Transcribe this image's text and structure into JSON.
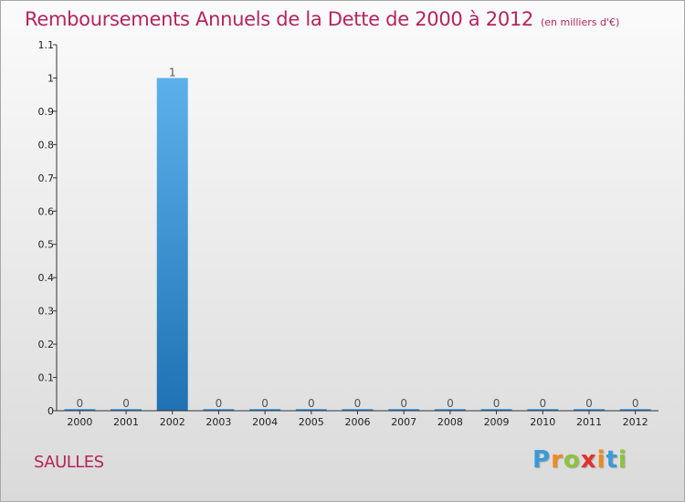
{
  "header": {
    "title": "Remboursements Annuels de la Dette de 2000 à 2012",
    "unit": "(en milliers d'€)"
  },
  "footer": {
    "town": "SAULLES",
    "logo": {
      "letters": [
        "P",
        "r",
        "o",
        "x",
        "i",
        "t",
        "i"
      ],
      "colors": [
        "#3a9ad9",
        "#f08a1c",
        "#8cc43c",
        "#e2312d",
        "#f08a1c",
        "#3a9ad9",
        "#8cc43c"
      ]
    }
  },
  "colors": {
    "bar_top": "#5cb1ec",
    "bar_bottom": "#1f72b3",
    "axis": "#333333",
    "tick_text": "#222222",
    "value_label": "#555555"
  },
  "chart_data": {
    "type": "bar",
    "title": "Remboursements Annuels de la Dette de 2000 à 2012",
    "xlabel": "",
    "ylabel": "",
    "categories": [
      "2000",
      "2001",
      "2002",
      "2003",
      "2004",
      "2005",
      "2006",
      "2007",
      "2008",
      "2009",
      "2010",
      "2011",
      "2012"
    ],
    "values": [
      0,
      0,
      1,
      0,
      0,
      0,
      0,
      0,
      0,
      0,
      0,
      0,
      0
    ],
    "value_labels": [
      "0",
      "0",
      "1",
      "0",
      "0",
      "0",
      "0",
      "0",
      "0",
      "0",
      "0",
      "0",
      "0"
    ],
    "ylim": [
      0,
      1.1
    ],
    "yticks": [
      0,
      0.1,
      0.2,
      0.3,
      0.4,
      0.5,
      0.6,
      0.7,
      0.8,
      0.9,
      1,
      1.1
    ],
    "ytick_labels": [
      "0",
      "0.1",
      "0.2",
      "0.3",
      "0.4",
      "0.5",
      "0.6",
      "0.7",
      "0.8",
      "0.9",
      "1",
      "1.1"
    ],
    "grid": false,
    "legend": "none"
  }
}
